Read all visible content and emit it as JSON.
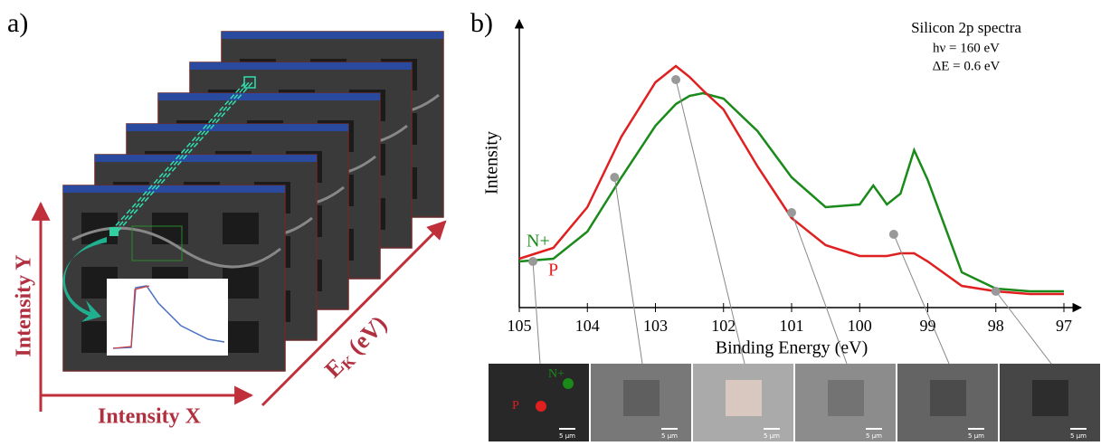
{
  "panel_a": {
    "label": "a)",
    "y_axis_label": "Intensity Y",
    "x_axis_label": "Intensity X",
    "energy_axis": {
      "main": "E",
      "sub": "K",
      "unit": "(eV)"
    }
  },
  "chart_data": {
    "type": "line",
    "panel_label": "b)",
    "title": "Silicon 2p spectra",
    "annotations": [
      "hν = 160 eV",
      "ΔE = 0.6 eV"
    ],
    "x_label": "Binding Energy (eV)",
    "y_label": "Intensity",
    "x": [
      105,
      104.5,
      104,
      103.5,
      103,
      102.7,
      102.5,
      102.3,
      102,
      101.5,
      101,
      100.5,
      100,
      99.8,
      99.6,
      99.4,
      99.2,
      99,
      98.5,
      98,
      97.5,
      97
    ],
    "series": [
      {
        "name": "N+",
        "color": "#1a8a1a",
        "values": [
          0.17,
          0.18,
          0.28,
          0.48,
          0.67,
          0.75,
          0.78,
          0.79,
          0.77,
          0.65,
          0.48,
          0.37,
          0.38,
          0.45,
          0.38,
          0.42,
          0.58,
          0.47,
          0.13,
          0.07,
          0.06,
          0.06
        ]
      },
      {
        "name": "P",
        "color": "#e02020",
        "values": [
          0.18,
          0.22,
          0.37,
          0.63,
          0.83,
          0.89,
          0.85,
          0.8,
          0.73,
          0.52,
          0.33,
          0.23,
          0.19,
          0.19,
          0.19,
          0.2,
          0.2,
          0.17,
          0.08,
          0.06,
          0.05,
          0.05
        ]
      }
    ],
    "xlim": [
      105,
      97
    ],
    "xticks": [
      105,
      104,
      103,
      102,
      101,
      100,
      99,
      98,
      97
    ],
    "ylim": [
      0,
      1
    ],
    "image_markers": {
      "x": [
        104.8,
        103.6,
        102.7,
        101,
        99.5,
        98
      ],
      "y": [
        0.17,
        0.48,
        0.84,
        0.35,
        0.27,
        0.06
      ],
      "color": "#999999"
    },
    "image_scale_label": "5 µm"
  }
}
